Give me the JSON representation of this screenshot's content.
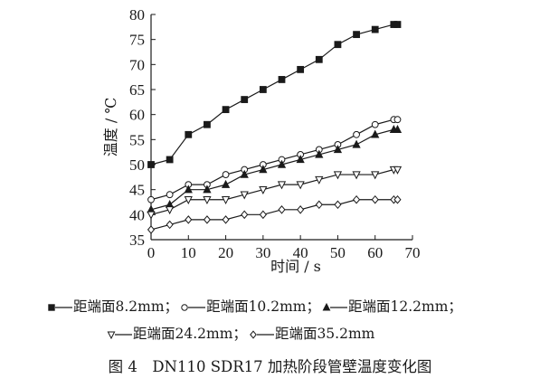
{
  "chart_data": {
    "type": "line",
    "xlabel": "时间 / s",
    "ylabel": "温度 / ℃",
    "xlim": [
      0,
      70
    ],
    "ylim": [
      35,
      80
    ],
    "xticks": [
      0,
      10,
      20,
      30,
      40,
      50,
      60,
      70
    ],
    "yticks": [
      35,
      40,
      45,
      50,
      55,
      60,
      65,
      70,
      75,
      80
    ],
    "legend_position": "bottom",
    "series": [
      {
        "name": "距端面8.2mm",
        "marker": "square-filled",
        "x": [
          0,
          5,
          10,
          15,
          20,
          25,
          30,
          35,
          40,
          45,
          50,
          55,
          60,
          65,
          66
        ],
        "y": [
          50,
          51,
          56,
          58,
          61,
          63,
          65,
          67,
          69,
          71,
          74,
          76,
          77,
          78,
          78
        ]
      },
      {
        "name": "距端面10.2mm",
        "marker": "circle-open",
        "x": [
          0,
          5,
          10,
          15,
          20,
          25,
          30,
          35,
          40,
          45,
          50,
          55,
          60,
          65,
          66
        ],
        "y": [
          43,
          44,
          46,
          46,
          48,
          49,
          50,
          51,
          52,
          53,
          54,
          56,
          58,
          59,
          59
        ]
      },
      {
        "name": "距端面12.2mm",
        "marker": "triangle-up-filled",
        "x": [
          0,
          5,
          10,
          15,
          20,
          25,
          30,
          35,
          40,
          45,
          50,
          55,
          60,
          65,
          66
        ],
        "y": [
          41,
          42,
          45,
          45,
          46,
          48,
          49,
          50,
          51,
          52,
          53,
          54,
          56,
          57,
          57
        ]
      },
      {
        "name": "距端面24.2mm",
        "marker": "triangle-down-open",
        "x": [
          0,
          5,
          10,
          15,
          20,
          25,
          30,
          35,
          40,
          45,
          50,
          55,
          60,
          65,
          66
        ],
        "y": [
          40,
          41,
          43,
          43,
          43,
          44,
          45,
          46,
          46,
          47,
          48,
          48,
          48,
          49,
          49
        ]
      },
      {
        "name": "距端面35.2mm",
        "marker": "diamond-open",
        "x": [
          0,
          5,
          10,
          15,
          20,
          25,
          30,
          35,
          40,
          45,
          50,
          55,
          60,
          65,
          66
        ],
        "y": [
          37,
          38,
          39,
          39,
          39,
          40,
          40,
          41,
          41,
          42,
          42,
          43,
          43,
          43,
          43
        ]
      }
    ],
    "legend_rows": [
      [
        0,
        1,
        2
      ],
      [
        3,
        4
      ]
    ],
    "legend_separators": [
      "；",
      "；",
      "；",
      "；",
      ""
    ]
  },
  "caption": "图 4　DN110 SDR17 加热阶段管壁温度变化图"
}
